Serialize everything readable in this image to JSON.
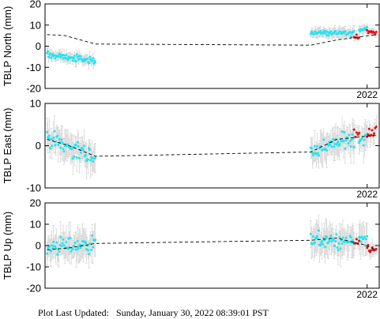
{
  "footer": {
    "label": "Plot Last Updated:",
    "value": "Sunday, January 30, 2022 08:39:01 PST"
  },
  "colors": {
    "cyan_points": "#22e4f0",
    "red_points": "#e01010",
    "error_bars": "#c8c8c8",
    "trend_line": "#000000",
    "frame": "#000000"
  },
  "chart_data": [
    {
      "type": "scatter",
      "ylabel": "TBLP North (mm)",
      "ylim": [
        -20,
        20
      ],
      "yticks": [
        -20,
        -10,
        0,
        10,
        20
      ],
      "xlim": [
        2006.0,
        2022.6
      ],
      "xtick_labels": [
        "2022"
      ],
      "xtick_positions": [
        2022.0
      ],
      "grid": false,
      "series": [
        {
          "style": "cyan-points",
          "segments": [
            {
              "x": [
                2006.1,
                2008.5
              ],
              "start": -4.0,
              "end": -7.0,
              "noise": 1.5,
              "err": 2.0
            },
            {
              "x": [
                2019.2,
                2021.35
              ],
              "start": 6.5,
              "end": 6.0,
              "noise": 1.3,
              "err": 2.0
            },
            {
              "x": [
                2021.6,
                2022.0
              ],
              "start": 8.0,
              "end": 8.5,
              "noise": 1.0,
              "err": 2.0
            }
          ]
        },
        {
          "style": "red-points",
          "segments": [
            {
              "x": [
                2021.35,
                2021.6
              ],
              "start": 4.5,
              "end": 5.0,
              "noise": 1.0,
              "err": 1.5
            },
            {
              "x": [
                2022.0,
                2022.45
              ],
              "start": 7.0,
              "end": 6.5,
              "noise": 1.0,
              "err": 1.5
            }
          ]
        },
        {
          "style": "trend-dashed",
          "points": [
            [
              2006.1,
              5.5
            ],
            [
              2007.0,
              5.0
            ],
            [
              2008.5,
              1.0
            ],
            [
              2019.2,
              0.5
            ],
            [
              2020.5,
              3.0
            ],
            [
              2022.45,
              5.5
            ]
          ]
        }
      ]
    },
    {
      "type": "scatter",
      "ylabel": "TBLP East (mm)",
      "ylim": [
        -10,
        10
      ],
      "yticks": [
        -10,
        0,
        10
      ],
      "xlim": [
        2006.0,
        2022.6
      ],
      "xtick_labels": [
        "2022"
      ],
      "xtick_positions": [
        2022.0
      ],
      "grid": false,
      "series": [
        {
          "style": "cyan-points",
          "segments": [
            {
              "x": [
                2006.1,
                2008.5
              ],
              "start": 2.0,
              "end": -3.0,
              "noise": 2.0,
              "err": 3.0
            },
            {
              "x": [
                2019.2,
                2021.35
              ],
              "start": -1.5,
              "end": 2.0,
              "noise": 1.8,
              "err": 3.0
            },
            {
              "x": [
                2021.6,
                2022.0
              ],
              "start": 1.0,
              "end": 2.5,
              "noise": 1.5,
              "err": 3.0
            }
          ]
        },
        {
          "style": "red-points",
          "segments": [
            {
              "x": [
                2021.35,
                2021.6
              ],
              "start": 3.0,
              "end": 3.0,
              "noise": 1.5,
              "err": 2.0
            },
            {
              "x": [
                2022.0,
                2022.45
              ],
              "start": 3.0,
              "end": 3.5,
              "noise": 1.5,
              "err": 2.0
            }
          ]
        },
        {
          "style": "trend-dashed",
          "points": [
            [
              2006.1,
              1.5
            ],
            [
              2007.2,
              0.0
            ],
            [
              2008.5,
              -2.5
            ],
            [
              2019.2,
              -1.5
            ],
            [
              2020.5,
              1.5
            ],
            [
              2022.45,
              2.5
            ]
          ]
        }
      ]
    },
    {
      "type": "scatter",
      "ylabel": "TBLP Up (mm)",
      "ylim": [
        -20,
        20
      ],
      "yticks": [
        -20,
        -10,
        0,
        10,
        20
      ],
      "xlim": [
        2006.0,
        2022.6
      ],
      "xtick_labels": [
        "2022"
      ],
      "xtick_positions": [
        2022.0
      ],
      "grid": false,
      "series": [
        {
          "style": "cyan-points",
          "segments": [
            {
              "x": [
                2006.1,
                2008.5
              ],
              "start": -1.0,
              "end": 1.0,
              "noise": 4.0,
              "err": 6.0
            },
            {
              "x": [
                2019.2,
                2021.35
              ],
              "start": 3.0,
              "end": 1.0,
              "noise": 3.5,
              "err": 6.0
            },
            {
              "x": [
                2021.6,
                2022.0
              ],
              "start": 4.0,
              "end": 1.0,
              "noise": 3.0,
              "err": 6.0
            }
          ]
        },
        {
          "style": "red-points",
          "segments": [
            {
              "x": [
                2021.35,
                2021.6
              ],
              "start": 0.0,
              "end": 2.0,
              "noise": 2.5,
              "err": 3.0
            },
            {
              "x": [
                2022.0,
                2022.45
              ],
              "start": -1.0,
              "end": -2.5,
              "noise": 1.5,
              "err": 3.0
            }
          ]
        },
        {
          "style": "trend-dashed",
          "points": [
            [
              2006.1,
              -2.0
            ],
            [
              2007.3,
              -1.0
            ],
            [
              2008.5,
              1.0
            ],
            [
              2019.2,
              2.5
            ],
            [
              2020.5,
              3.5
            ],
            [
              2021.8,
              0.5
            ],
            [
              2022.45,
              -2.0
            ]
          ]
        }
      ]
    }
  ]
}
